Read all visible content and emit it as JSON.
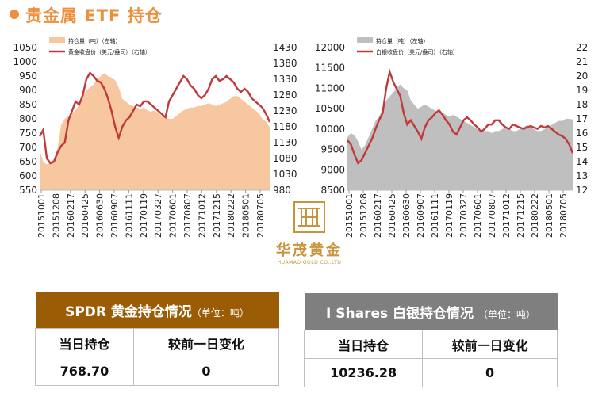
{
  "page": {
    "title": "贵金属 ETF 持仓"
  },
  "colors": {
    "accent": "#ed8f3c",
    "gold_area": "#f7c79f",
    "price_line": "#c0393b",
    "silver_area": "#bfbfbf",
    "gold_header": "#9a5c05",
    "silver_header": "#7f7f7f",
    "logo": "#c8943c"
  },
  "logo": {
    "name": "华茂黄金",
    "sub": "HUAMAO GOLD CO.,LTD"
  },
  "chart_data": [
    {
      "type": "area",
      "legend": [
        "持仓量（吨）（左轴）",
        "黄金收盘价（美元/盎司）（右轴）"
      ],
      "legend_position": "top-left",
      "x_ticks": [
        "20151001",
        "20151208",
        "20160217",
        "20160425",
        "20160630",
        "20160907",
        "20161111",
        "20170119",
        "20170327",
        "20170601",
        "20170807",
        "20171012",
        "20171215",
        "20180222",
        "20180501",
        "20180705"
      ],
      "yleft": {
        "ticks": [
          550,
          600,
          650,
          700,
          750,
          800,
          850,
          900,
          950,
          1000,
          1050
        ],
        "lim": [
          550,
          1050
        ]
      },
      "yright": {
        "ticks": [
          980,
          1030,
          1080,
          1130,
          1180,
          1230,
          1280,
          1330,
          1380,
          1430
        ],
        "lim": [
          980,
          1430
        ]
      },
      "series": [
        {
          "name": "持仓量（吨）（左轴）",
          "kind": "area",
          "axis": "left",
          "values": [
            690,
            650,
            640,
            650,
            660,
            700,
            780,
            800,
            810,
            820,
            830,
            850,
            880,
            900,
            910,
            920,
            940,
            950,
            960,
            950,
            945,
            935,
            910,
            870,
            860,
            850,
            845,
            840,
            835,
            840,
            830,
            825,
            830,
            820,
            810,
            805,
            800,
            800,
            810,
            820,
            830,
            835,
            840,
            840,
            845,
            845,
            850,
            855,
            850,
            845,
            850,
            855,
            860,
            870,
            880,
            880,
            870,
            860,
            850,
            840,
            830,
            820,
            800,
            790,
            770
          ]
        },
        {
          "name": "黄金收盘价（美元/盎司）（右轴）",
          "kind": "line",
          "axis": "right",
          "values": [
            1150,
            1170,
            1080,
            1065,
            1070,
            1100,
            1120,
            1130,
            1200,
            1230,
            1260,
            1250,
            1280,
            1330,
            1350,
            1340,
            1325,
            1320,
            1300,
            1270,
            1230,
            1180,
            1145,
            1180,
            1200,
            1210,
            1230,
            1250,
            1245,
            1260,
            1260,
            1250,
            1240,
            1230,
            1220,
            1210,
            1260,
            1280,
            1300,
            1320,
            1340,
            1330,
            1310,
            1300,
            1280,
            1270,
            1280,
            1300,
            1330,
            1340,
            1325,
            1330,
            1340,
            1330,
            1320,
            1300,
            1290,
            1300,
            1290,
            1270,
            1260,
            1250,
            1240,
            1220,
            1195
          ]
        }
      ]
    },
    {
      "type": "area",
      "legend": [
        "持仓量（吨）（左轴）",
        "白银收盘价（美元/盎司）（右轴）"
      ],
      "legend_position": "top-left",
      "x_ticks": [
        "20151001",
        "20151208",
        "20160217",
        "20160425",
        "20160630",
        "20160907",
        "20161111",
        "20170119",
        "20170327",
        "20170601",
        "20170807",
        "20171012",
        "20171215",
        "20180222",
        "20180501",
        "20180705"
      ],
      "yleft": {
        "ticks": [
          8500,
          9000,
          9500,
          10000,
          10500,
          11000,
          11500,
          12000
        ],
        "lim": [
          8500,
          12000
        ]
      },
      "yright": {
        "ticks": [
          12,
          13,
          14,
          15,
          16,
          17,
          18,
          19,
          20,
          21,
          22
        ],
        "lim": [
          12,
          22
        ]
      },
      "series": [
        {
          "name": "持仓量（吨）（左轴）",
          "kind": "area",
          "axis": "left",
          "values": [
            9800,
            9900,
            9850,
            9700,
            9500,
            9600,
            9800,
            10000,
            10200,
            10300,
            10500,
            10700,
            10800,
            10900,
            11000,
            11100,
            11000,
            10950,
            10700,
            10600,
            10500,
            10550,
            10600,
            10550,
            10500,
            10450,
            10400,
            10400,
            10350,
            10300,
            10350,
            10300,
            10250,
            10200,
            10150,
            10100,
            10050,
            10000,
            9950,
            9950,
            9950,
            9900,
            9950,
            9950,
            10000,
            10050,
            10000,
            9950,
            9950,
            10000,
            10050,
            10100,
            10050,
            10000,
            9950,
            9950,
            10000,
            10050,
            10100,
            10150,
            10200,
            10200,
            10250,
            10250,
            10236
          ]
        },
        {
          "name": "白银收盘价（美元/盎司）（右轴）",
          "kind": "line",
          "axis": "right",
          "values": [
            15.5,
            15.2,
            14.5,
            13.9,
            14.1,
            14.6,
            15.1,
            15.6,
            16.3,
            16.9,
            17.4,
            19.1,
            20.3,
            19.6,
            19.1,
            18.6,
            17.4,
            16.6,
            16.9,
            16.5,
            16.1,
            15.6,
            16.4,
            16.9,
            17.1,
            17.4,
            17.6,
            17.3,
            16.9,
            16.6,
            16.1,
            15.9,
            16.4,
            16.9,
            17.1,
            16.9,
            16.6,
            16.4,
            16.1,
            16.3,
            16.6,
            16.6,
            16.9,
            16.9,
            16.6,
            16.4,
            16.3,
            16.6,
            16.5,
            16.4,
            16.3,
            16.4,
            16.5,
            16.4,
            16.3,
            16.5,
            16.4,
            16.5,
            16.3,
            16.1,
            15.9,
            15.8,
            15.6,
            15.2,
            14.6
          ]
        }
      ]
    }
  ],
  "gold_table": {
    "title": "SPDR 黄金持仓情况",
    "unit": "（单位：吨）",
    "col_today": "当日持仓",
    "col_change": "较前一日变化",
    "today": "768.70",
    "change": "0"
  },
  "silver_table": {
    "title": "I Shares 白银持仓情况",
    "unit": "（单位：吨）",
    "col_today": "当日持仓",
    "col_change": "较前一日变化",
    "today": "10236.28",
    "change": "0"
  }
}
